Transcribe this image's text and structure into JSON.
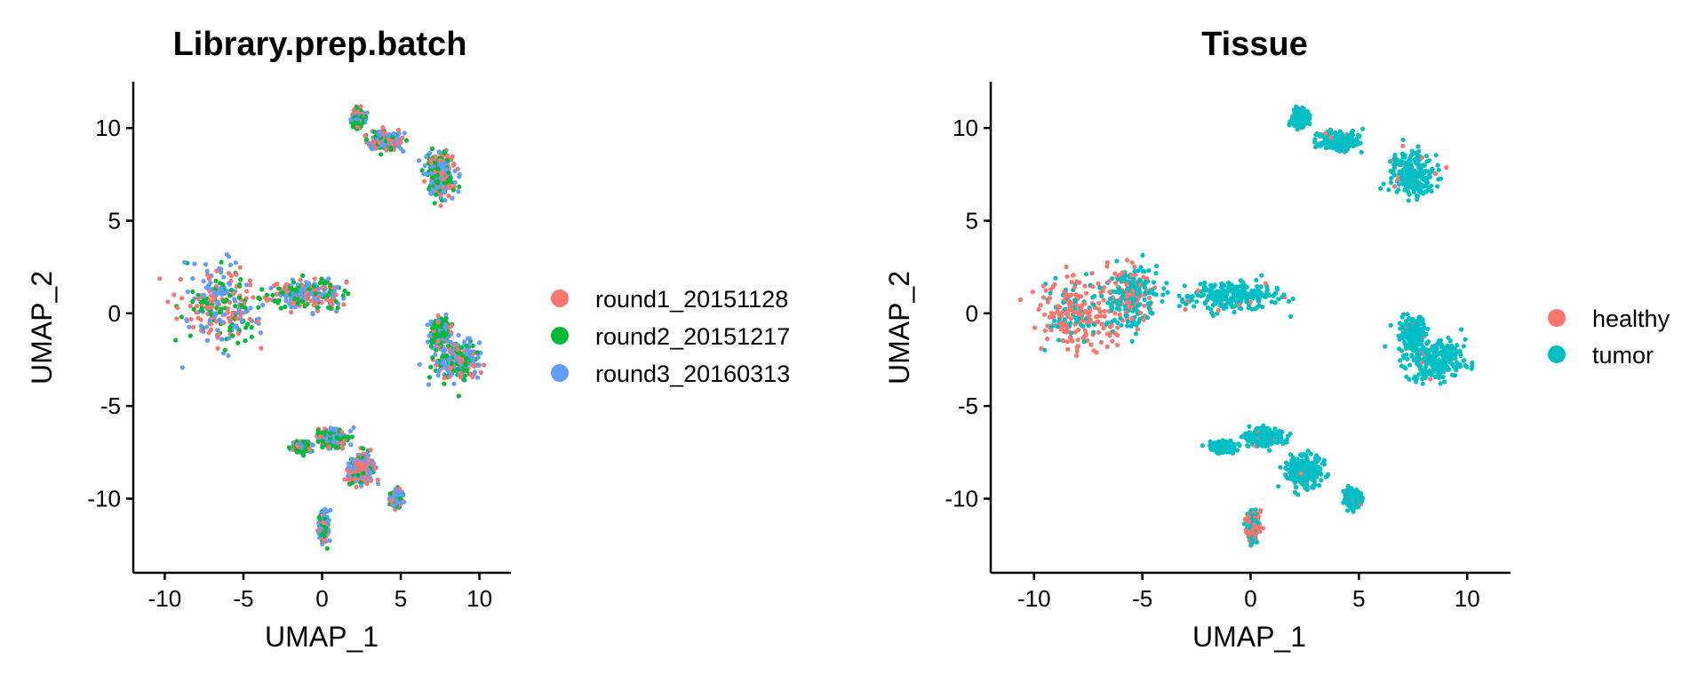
{
  "chart_data": [
    {
      "type": "scatter",
      "title": "Library.prep.batch",
      "xlabel": "UMAP_1",
      "ylabel": "UMAP_2",
      "xlim": [
        -12,
        12
      ],
      "ylim": [
        -14,
        12.5
      ],
      "xticks": [
        -10,
        -5,
        0,
        5,
        10
      ],
      "xtick_labels": [
        "-10",
        "-5",
        "0",
        "5",
        "10"
      ],
      "yticks": [
        -10,
        -5,
        0,
        5,
        10
      ],
      "ytick_labels": [
        "-10",
        "-5",
        "0",
        "5",
        "10"
      ],
      "grid": false,
      "legend_position": "right",
      "series": [
        {
          "name": "round1_20151128",
          "color": "#F8766D"
        },
        {
          "name": "round2_20151217",
          "color": "#00BA38"
        },
        {
          "name": "round3_20160313",
          "color": "#619CFF"
        }
      ],
      "clusters": [
        {
          "center": [
            -6.5,
            0.3
          ],
          "spread": [
            2.7,
            2.5
          ],
          "weights": [
            0.35,
            0.3,
            0.35
          ]
        },
        {
          "center": [
            -1.0,
            1.0
          ],
          "spread": [
            2.6,
            0.9
          ],
          "weights": [
            0.35,
            0.3,
            0.35
          ]
        },
        {
          "center": [
            8.5,
            -2.5
          ],
          "spread": [
            1.6,
            1.3
          ],
          "weights": [
            0.2,
            0.3,
            0.5
          ]
        },
        {
          "center": [
            7.5,
            -1.0
          ],
          "spread": [
            0.6,
            0.8
          ],
          "weights": [
            0.15,
            0.55,
            0.3
          ]
        },
        {
          "center": [
            7.5,
            7.5
          ],
          "spread": [
            1.1,
            1.4
          ],
          "weights": [
            0.3,
            0.3,
            0.4
          ]
        },
        {
          "center": [
            4.0,
            9.3
          ],
          "spread": [
            1.0,
            0.5
          ],
          "weights": [
            0.3,
            0.3,
            0.4
          ]
        },
        {
          "center": [
            2.3,
            10.5
          ],
          "spread": [
            0.4,
            0.5
          ],
          "weights": [
            0.2,
            0.5,
            0.3
          ]
        },
        {
          "center": [
            0.6,
            -6.7
          ],
          "spread": [
            1.0,
            0.5
          ],
          "weights": [
            0.3,
            0.3,
            0.4
          ]
        },
        {
          "center": [
            -1.3,
            -7.2
          ],
          "spread": [
            0.6,
            0.3
          ],
          "weights": [
            0.2,
            0.6,
            0.2
          ]
        },
        {
          "center": [
            2.5,
            -8.5
          ],
          "spread": [
            0.9,
            0.9
          ],
          "weights": [
            0.4,
            0.2,
            0.4
          ]
        },
        {
          "center": [
            4.7,
            -10.0
          ],
          "spread": [
            0.4,
            0.5
          ],
          "weights": [
            0.3,
            0.2,
            0.5
          ]
        },
        {
          "center": [
            0.1,
            -11.5
          ],
          "spread": [
            0.3,
            0.8
          ],
          "weights": [
            0.2,
            0.2,
            0.6
          ]
        }
      ]
    },
    {
      "type": "scatter",
      "title": "Tissue",
      "xlabel": "UMAP_1",
      "ylabel": "UMAP_2",
      "xlim": [
        -12,
        12
      ],
      "ylim": [
        -14,
        12.5
      ],
      "xticks": [
        -10,
        -5,
        0,
        5,
        10
      ],
      "xtick_labels": [
        "-10",
        "-5",
        "0",
        "5",
        "10"
      ],
      "yticks": [
        -10,
        -5,
        0,
        5,
        10
      ],
      "ytick_labels": [
        "-10",
        "-5",
        "0",
        "5",
        "10"
      ],
      "grid": false,
      "legend_position": "right",
      "series": [
        {
          "name": "healthy",
          "color": "#F8766D"
        },
        {
          "name": "tumor",
          "color": "#00BFC4"
        }
      ],
      "clusters": [
        {
          "center": [
            -8.0,
            0.0
          ],
          "spread": [
            2.0,
            2.2
          ],
          "weights": [
            0.75,
            0.25
          ]
        },
        {
          "center": [
            -5.5,
            1.0
          ],
          "spread": [
            1.2,
            1.8
          ],
          "weights": [
            0.3,
            0.7
          ]
        },
        {
          "center": [
            -1.0,
            1.0
          ],
          "spread": [
            2.6,
            0.9
          ],
          "weights": [
            0.03,
            0.97
          ]
        },
        {
          "center": [
            8.5,
            -2.5
          ],
          "spread": [
            1.6,
            1.3
          ],
          "weights": [
            0.04,
            0.96
          ]
        },
        {
          "center": [
            7.5,
            -1.0
          ],
          "spread": [
            0.6,
            0.8
          ],
          "weights": [
            0.02,
            0.98
          ]
        },
        {
          "center": [
            7.5,
            7.5
          ],
          "spread": [
            1.1,
            1.4
          ],
          "weights": [
            0.07,
            0.93
          ]
        },
        {
          "center": [
            4.0,
            9.3
          ],
          "spread": [
            1.0,
            0.5
          ],
          "weights": [
            0.05,
            0.95
          ]
        },
        {
          "center": [
            2.3,
            10.5
          ],
          "spread": [
            0.4,
            0.5
          ],
          "weights": [
            0.02,
            0.98
          ]
        },
        {
          "center": [
            0.6,
            -6.7
          ],
          "spread": [
            1.0,
            0.5
          ],
          "weights": [
            0.08,
            0.92
          ]
        },
        {
          "center": [
            -1.3,
            -7.2
          ],
          "spread": [
            0.6,
            0.3
          ],
          "weights": [
            0.05,
            0.95
          ]
        },
        {
          "center": [
            2.5,
            -8.5
          ],
          "spread": [
            0.9,
            0.9
          ],
          "weights": [
            0.03,
            0.97
          ]
        },
        {
          "center": [
            4.7,
            -10.0
          ],
          "spread": [
            0.4,
            0.5
          ],
          "weights": [
            0.02,
            0.98
          ]
        },
        {
          "center": [
            0.1,
            -11.5
          ],
          "spread": [
            0.3,
            0.8
          ],
          "weights": [
            0.5,
            0.5
          ]
        }
      ]
    }
  ]
}
